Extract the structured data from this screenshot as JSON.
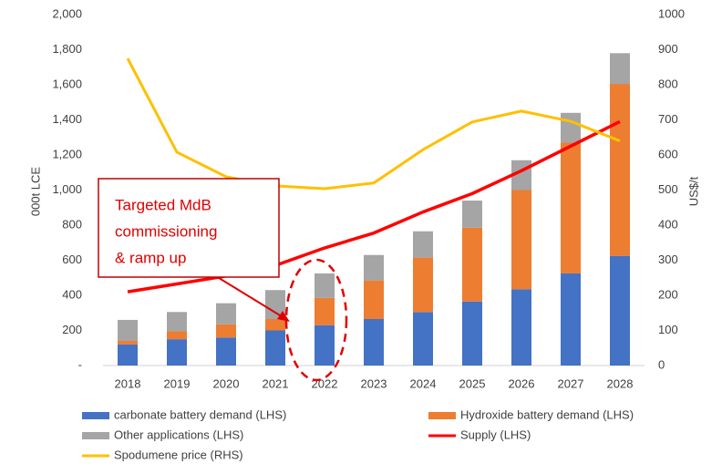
{
  "chart_data": {
    "type": "bar",
    "stacked": true,
    "categories": [
      "2018",
      "2019",
      "2020",
      "2021",
      "2022",
      "2023",
      "2024",
      "2025",
      "2026",
      "2027",
      "2028"
    ],
    "series": [
      {
        "name": "carbonate battery demand (LHS)",
        "type": "bar",
        "color": "#4472c4",
        "values": [
          120,
          150,
          160,
          200,
          230,
          265,
          305,
          365,
          435,
          525,
          625
        ]
      },
      {
        "name": "Hydroxide battery demand (LHS)",
        "type": "bar",
        "color": "#ed7d31",
        "values": [
          20,
          45,
          75,
          65,
          155,
          220,
          310,
          420,
          565,
          745,
          980
        ]
      },
      {
        "name": "Other applications (LHS)",
        "type": "bar",
        "color": "#a5a5a5",
        "values": [
          120,
          110,
          120,
          165,
          140,
          145,
          150,
          155,
          170,
          170,
          175
        ]
      },
      {
        "name": "Supply (LHS)",
        "type": "line",
        "color": "#ff0000",
        "values": [
          420,
          465,
          510,
          570,
          670,
          755,
          875,
          980,
          1110,
          1250,
          1390
        ]
      },
      {
        "name": "Spodumene price (RHS)",
        "type": "line",
        "axis": "y2",
        "color": "#ffc000",
        "values": [
          875,
          608,
          538,
          512,
          504,
          520,
          615,
          694,
          725,
          696,
          640
        ]
      }
    ],
    "ylabel": "000t LCE",
    "y2label": "US$/t",
    "ylim": [
      0,
      2000
    ],
    "yticks": [
      {
        "value": 0,
        "label": "-"
      },
      200,
      400,
      600,
      800,
      {
        "value": 1000,
        "label": "1,000"
      },
      {
        "value": 1200,
        "label": "1,200"
      },
      {
        "value": 1400,
        "label": "1,400"
      },
      {
        "value": 1600,
        "label": "1,600"
      },
      {
        "value": 1800,
        "label": "1,800"
      },
      {
        "value": 2000,
        "label": "2,000"
      }
    ],
    "y2lim": [
      0,
      1000
    ],
    "y2ticks": [
      0,
      100,
      200,
      300,
      400,
      500,
      600,
      700,
      800,
      900,
      1000
    ],
    "annotation": [
      "Targeted MdB",
      "commissioning",
      "& ramp up"
    ],
    "legend": "bottom",
    "grid": false
  }
}
